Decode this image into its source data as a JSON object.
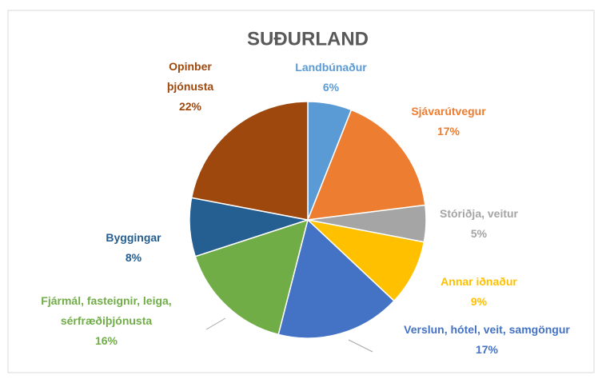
{
  "chart_data": {
    "type": "pie",
    "title": "SUÐURLAND",
    "categories": [
      "Landbúnaður",
      "Sjávarútvegur",
      "Stóriðja, veitur",
      "Annar iðnaður",
      "Verslun, hótel, veit, samgöngur",
      "Fjármál, fasteignir, leiga, sérfræðiþjónusta",
      "Byggingar",
      "Opinber þjónusta"
    ],
    "values": [
      6,
      17,
      5,
      9,
      17,
      16,
      8,
      22
    ],
    "value_labels": [
      "6%",
      "17%",
      "5%",
      "9%",
      "17%",
      "16%",
      "8%",
      "22%"
    ],
    "colors": [
      "#5b9bd5",
      "#ed7d31",
      "#a5a5a5",
      "#ffc000",
      "#4472c4",
      "#70ad47",
      "#255e91",
      "#9e480e"
    ]
  }
}
